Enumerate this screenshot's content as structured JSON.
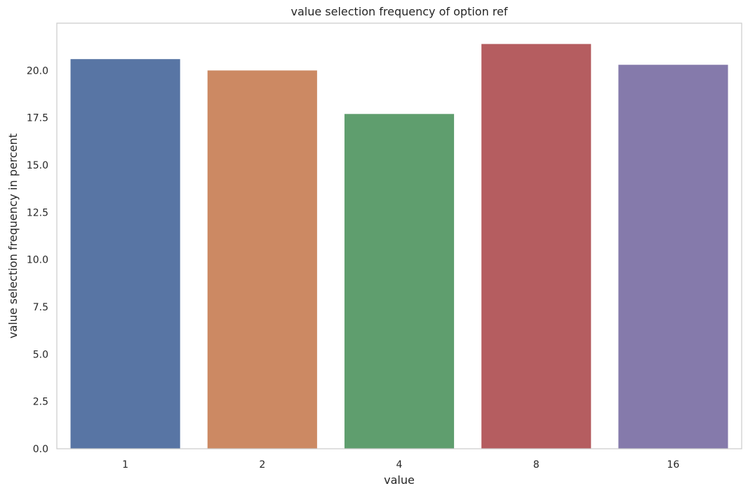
{
  "chart_data": {
    "type": "bar",
    "title": "value selection frequency of option ref",
    "xlabel": "value",
    "ylabel": "value selection frequency in percent",
    "categories": [
      "1",
      "2",
      "4",
      "8",
      "16"
    ],
    "values": [
      20.6,
      20.0,
      17.7,
      21.4,
      20.3
    ],
    "colors": [
      "#5875a4",
      "#cc8963",
      "#5f9e6e",
      "#b55d60",
      "#857aab"
    ],
    "ylim": [
      0,
      22.5
    ],
    "yticks": [
      0.0,
      2.5,
      5.0,
      7.5,
      10.0,
      12.5,
      15.0,
      17.5,
      20.0
    ],
    "ytick_labels": [
      "0.0",
      "2.5",
      "5.0",
      "7.5",
      "10.0",
      "12.5",
      "15.0",
      "17.5",
      "20.0"
    ],
    "grid": false,
    "legend": "none"
  }
}
